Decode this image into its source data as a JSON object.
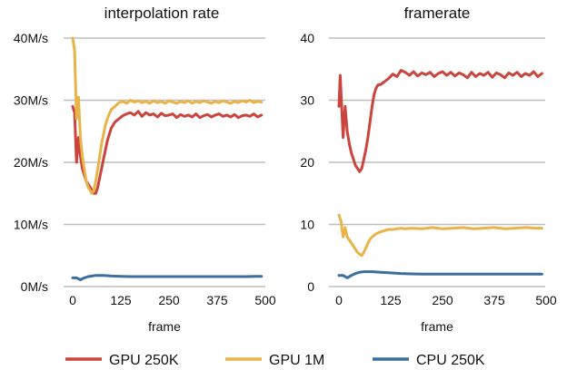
{
  "chart_data": [
    {
      "type": "line",
      "title": "interpolation rate",
      "xlabel": "frame",
      "ylabel": "",
      "xlim": [
        0,
        500
      ],
      "ylim": [
        0,
        40
      ],
      "x_ticks": [
        0,
        125,
        250,
        375,
        500
      ],
      "x_tick_labels": [
        "0",
        "125",
        "250",
        "375",
        "500"
      ],
      "y_ticks": [
        0,
        10,
        20,
        30,
        40
      ],
      "y_tick_labels": [
        "0M/s",
        "10M/s",
        "20M/s",
        "30M/s",
        "40M/s"
      ],
      "grid": true,
      "series": [
        {
          "name": "GPU 250K",
          "color": "#c9453d",
          "x": [
            0,
            5,
            10,
            15,
            20,
            25,
            30,
            35,
            40,
            45,
            50,
            55,
            60,
            65,
            70,
            75,
            80,
            85,
            90,
            95,
            100,
            110,
            120,
            130,
            140,
            150,
            160,
            170,
            180,
            190,
            200,
            210,
            220,
            230,
            240,
            250,
            260,
            270,
            280,
            290,
            300,
            310,
            320,
            330,
            340,
            350,
            360,
            370,
            380,
            390,
            400,
            410,
            420,
            430,
            440,
            450,
            460,
            470,
            480,
            490
          ],
          "y": [
            29,
            28,
            20,
            24,
            21,
            19,
            18,
            17,
            16.5,
            16,
            15.5,
            15,
            15,
            16,
            17.5,
            19,
            20.5,
            22,
            23.5,
            24.5,
            25.5,
            26.5,
            27,
            27.5,
            27.8,
            28,
            27.6,
            28.2,
            27.4,
            28,
            27.6,
            27.8,
            27.3,
            27.9,
            27.5,
            27.6,
            27.8,
            27.2,
            27.7,
            27.4,
            27.6,
            27.3,
            27.8,
            27.2,
            27.5,
            27.7,
            27.3,
            27.6,
            27.8,
            27.4,
            27.6,
            27.3,
            27.7,
            27.2,
            27.5,
            27.6,
            27.4,
            27.8,
            27.3,
            27.6
          ]
        },
        {
          "name": "GPU 1M",
          "color": "#e8b44a",
          "x": [
            0,
            5,
            10,
            15,
            20,
            25,
            30,
            35,
            40,
            45,
            50,
            55,
            60,
            65,
            70,
            75,
            80,
            85,
            90,
            95,
            100,
            110,
            120,
            130,
            140,
            150,
            160,
            170,
            180,
            190,
            200,
            210,
            220,
            230,
            240,
            250,
            260,
            270,
            280,
            290,
            300,
            310,
            320,
            330,
            340,
            350,
            360,
            370,
            380,
            390,
            400,
            410,
            420,
            430,
            440,
            450,
            460,
            470,
            480,
            490
          ],
          "y": [
            40,
            38,
            27,
            30.5,
            24,
            21,
            19,
            17,
            16,
            15.5,
            15,
            15.5,
            17,
            19,
            21,
            23,
            24.5,
            26,
            27,
            27.8,
            28.5,
            29,
            29.6,
            29.8,
            29.5,
            30,
            29.7,
            29.9,
            29.6,
            29.8,
            29.5,
            29.9,
            29.6,
            29.8,
            29.5,
            29.9,
            29.7,
            29.5,
            29.8,
            29.6,
            29.9,
            29.5,
            29.8,
            29.6,
            29.9,
            29.7,
            29.5,
            29.8,
            29.6,
            29.9,
            29.7,
            29.5,
            29.8,
            29.6,
            29.9,
            29.7,
            30,
            29.6,
            29.8,
            29.7
          ]
        },
        {
          "name": "CPU 250K",
          "color": "#3d6f9e",
          "x": [
            0,
            10,
            20,
            30,
            40,
            50,
            60,
            70,
            80,
            90,
            100,
            125,
            150,
            175,
            200,
            225,
            250,
            275,
            300,
            325,
            350,
            375,
            400,
            425,
            450,
            475,
            490
          ],
          "y": [
            1.4,
            1.4,
            1.1,
            1.4,
            1.6,
            1.7,
            1.8,
            1.8,
            1.8,
            1.75,
            1.7,
            1.65,
            1.6,
            1.6,
            1.6,
            1.6,
            1.6,
            1.6,
            1.6,
            1.6,
            1.6,
            1.6,
            1.6,
            1.6,
            1.6,
            1.65,
            1.65
          ]
        }
      ]
    },
    {
      "type": "line",
      "title": "framerate",
      "xlabel": "frame",
      "ylabel": "",
      "xlim": [
        0,
        500
      ],
      "ylim": [
        0,
        40
      ],
      "x_ticks": [
        0,
        125,
        250,
        375,
        500
      ],
      "x_tick_labels": [
        "0",
        "125",
        "250",
        "375",
        "500"
      ],
      "y_ticks": [
        0,
        10,
        20,
        30,
        40
      ],
      "y_tick_labels": [
        "0",
        "10",
        "20",
        "30",
        "40"
      ],
      "grid": true,
      "series": [
        {
          "name": "GPU 250K",
          "color": "#c9453d",
          "x": [
            0,
            3,
            6,
            10,
            15,
            20,
            25,
            30,
            35,
            40,
            45,
            50,
            55,
            60,
            65,
            70,
            75,
            80,
            85,
            90,
            95,
            100,
            110,
            120,
            130,
            140,
            150,
            160,
            170,
            180,
            190,
            200,
            210,
            220,
            230,
            240,
            250,
            260,
            270,
            280,
            290,
            300,
            310,
            320,
            330,
            340,
            350,
            360,
            370,
            380,
            390,
            400,
            410,
            420,
            430,
            440,
            450,
            460,
            470,
            480,
            490
          ],
          "y": [
            29,
            34,
            30,
            24,
            29,
            25,
            23,
            21.5,
            20.5,
            19.5,
            19,
            18.5,
            19,
            20.5,
            22,
            24,
            26.5,
            29,
            31,
            32,
            32.5,
            32.5,
            33,
            33.5,
            34.2,
            33.8,
            34.8,
            34.5,
            34,
            34.6,
            33.9,
            34.4,
            34.1,
            34.5,
            33.8,
            34.3,
            34.6,
            34,
            34.5,
            33.9,
            34.4,
            34.1,
            33.6,
            34.5,
            33.8,
            34.3,
            34,
            34.5,
            33.7,
            34.4,
            34.1,
            33.6,
            34.4,
            34,
            34.5,
            33.8,
            34.3,
            34,
            34.6,
            33.8,
            34.3
          ]
        },
        {
          "name": "GPU 1M",
          "color": "#e8b44a",
          "x": [
            0,
            5,
            10,
            15,
            20,
            25,
            30,
            35,
            40,
            45,
            50,
            55,
            60,
            65,
            70,
            75,
            80,
            90,
            100,
            110,
            120,
            130,
            140,
            150,
            160,
            175,
            200,
            225,
            250,
            275,
            300,
            325,
            350,
            375,
            400,
            425,
            450,
            475,
            490
          ],
          "y": [
            11.5,
            10.5,
            8,
            9.5,
            8,
            7.5,
            7,
            6.5,
            6,
            5.5,
            5.2,
            5,
            5.5,
            6.2,
            7,
            7.6,
            8,
            8.5,
            8.8,
            9,
            9.2,
            9.2,
            9.3,
            9.4,
            9.3,
            9.4,
            9.3,
            9.5,
            9.3,
            9.4,
            9.5,
            9.3,
            9.4,
            9.5,
            9.3,
            9.4,
            9.5,
            9.4,
            9.4
          ]
        },
        {
          "name": "CPU 250K",
          "color": "#3d6f9e",
          "x": [
            0,
            10,
            20,
            30,
            40,
            50,
            60,
            70,
            80,
            90,
            100,
            125,
            150,
            175,
            200,
            225,
            250,
            275,
            300,
            325,
            350,
            375,
            400,
            425,
            450,
            475,
            490
          ],
          "y": [
            1.8,
            1.8,
            1.4,
            1.8,
            2.1,
            2.3,
            2.4,
            2.4,
            2.4,
            2.35,
            2.3,
            2.2,
            2.1,
            2.05,
            2.0,
            2.0,
            2.0,
            2.0,
            2.0,
            2.0,
            2.0,
            2.0,
            2.0,
            2.0,
            2.0,
            2.0,
            2.0
          ]
        }
      ]
    }
  ],
  "legend": {
    "placement": "bottom",
    "items": [
      {
        "label": "GPU 250K",
        "color": "#c9453d"
      },
      {
        "label": "GPU 1M",
        "color": "#e8b44a"
      },
      {
        "label": "CPU 250K",
        "color": "#3d6f9e"
      }
    ]
  }
}
